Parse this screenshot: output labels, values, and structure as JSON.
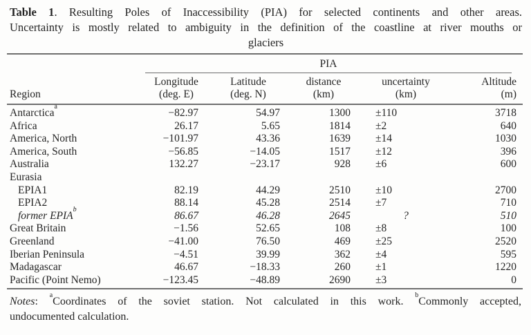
{
  "caption": {
    "label": "Table 1",
    "line1_rest": ". Resulting Poles of Inaccessibility (PIA) for selected continents and other areas.",
    "line2": "Uncertainty is mostly related to ambiguity in the definition of the coastline at river mouths or",
    "line3": "glaciers"
  },
  "table": {
    "spanner": "PIA",
    "header": {
      "region": "Region",
      "columns": [
        {
          "line1": "Longitude",
          "line2": "(deg. E)"
        },
        {
          "line1": "Latitude",
          "line2": "(deg. N)"
        },
        {
          "line1": "distance",
          "line2": "(km)"
        },
        {
          "line1": "uncertainty",
          "line2": "(km)"
        },
        {
          "line1": "Altitude",
          "line2": "(m)"
        }
      ]
    },
    "rows": [
      {
        "region": "Antarctica",
        "sup": "a",
        "lon": "−82.97",
        "lat": "54.97",
        "dist": "1300",
        "unc": "±110",
        "alt": "3718"
      },
      {
        "region": "Africa",
        "lon": "26.17",
        "lat": "5.65",
        "dist": "1814",
        "unc": "±2",
        "alt": "640"
      },
      {
        "region": "America, North",
        "lon": "−101.97",
        "lat": "43.36",
        "dist": "1639",
        "unc": "±14",
        "alt": "1030"
      },
      {
        "region": "America, South",
        "lon": "−56.85",
        "lat": "−14.05",
        "dist": "1517",
        "unc": "±12",
        "alt": "396"
      },
      {
        "region": "Australia",
        "lon": "132.27",
        "lat": "−23.17",
        "dist": "928",
        "unc": "±6",
        "alt": "600"
      },
      {
        "region": "Eurasia",
        "group": true,
        "lon": "",
        "lat": "",
        "dist": "",
        "unc": "",
        "alt": ""
      },
      {
        "region": "EPIA1",
        "indent": true,
        "lon": "82.19",
        "lat": "44.29",
        "dist": "2510",
        "unc": "±10",
        "alt": "2700"
      },
      {
        "region": "EPIA2",
        "indent": true,
        "lon": "88.14",
        "lat": "45.28",
        "dist": "2514",
        "unc": "±7",
        "alt": "710"
      },
      {
        "region": "former EPIA",
        "sup": "b",
        "indent": true,
        "italic": true,
        "lon": "86.67",
        "lat": "46.28",
        "dist": "2645",
        "unc": "?",
        "alt": "510"
      },
      {
        "region": "Great Britain",
        "lon": "−1.56",
        "lat": "52.65",
        "dist": "108",
        "unc": "±8",
        "alt": "100"
      },
      {
        "region": "Greenland",
        "lon": "−41.00",
        "lat": "76.50",
        "dist": "469",
        "unc": "±25",
        "alt": "2520"
      },
      {
        "region": "Iberian Peninsula",
        "lon": "−4.51",
        "lat": "39.99",
        "dist": "362",
        "unc": "±4",
        "alt": "595"
      },
      {
        "region": "Madagascar",
        "lon": "46.67",
        "lat": "−18.33",
        "dist": "260",
        "unc": "±1",
        "alt": "1220"
      },
      {
        "region": "Pacific (Point Nemo)",
        "lon": "−123.45",
        "lat": "−48.89",
        "dist": "2690",
        "unc": "±3",
        "alt": "0"
      }
    ]
  },
  "notes": {
    "label": "Notes",
    "separator": ": ",
    "marker_a": "a",
    "text_a": "Coordinates of the soviet station. Not calculated in this work. ",
    "marker_b": "b",
    "text_b": "Commonly accepted,",
    "line2": "undocumented calculation."
  },
  "colors": {
    "background": "#fdfdfc",
    "text": "#242424",
    "rule": "#6e6e6e"
  }
}
